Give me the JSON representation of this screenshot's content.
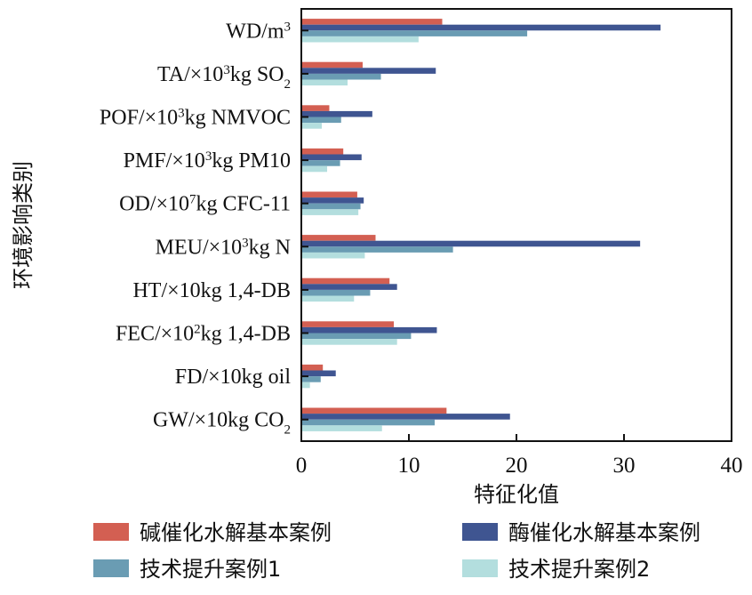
{
  "chart_data": {
    "type": "bar",
    "orientation": "horizontal",
    "xlabel": "特征化值",
    "ylabel": "环境影响类别",
    "xlim": [
      0,
      40
    ],
    "xticks": [
      0,
      10,
      20,
      30,
      40
    ],
    "categories": [
      {
        "main": "WD/m",
        "sup": "3",
        "rest": ""
      },
      {
        "main": "TA/×10",
        "sup": "3",
        "rest": "kg SO",
        "sub": "2"
      },
      {
        "main": "POF/×10",
        "sup": "3",
        "rest": "kg NMVOC"
      },
      {
        "main": "PMF/×10",
        "sup": "3",
        "rest": "kg PM10"
      },
      {
        "main": "OD/×10",
        "sup": "7",
        "rest": "kg CFC-11"
      },
      {
        "main": "MEU/×10",
        "sup": "3",
        "rest": "kg N"
      },
      {
        "main": "HT/×10kg 1,4-DB"
      },
      {
        "main": "FEC/×10",
        "sup": "2",
        "rest": "kg 1,4-DB"
      },
      {
        "main": "FD/×10kg oil"
      },
      {
        "main": "GW/×10kg CO",
        "sub": "2"
      }
    ],
    "series": [
      {
        "name": "碱催化水解基本案例",
        "color": "#d35f52",
        "values": [
          13.1,
          5.7,
          2.6,
          3.9,
          5.2,
          6.9,
          8.2,
          8.6,
          2.0,
          13.5
        ]
      },
      {
        "name": "酶催化水解基本案例",
        "color": "#3f5591",
        "values": [
          33.4,
          12.5,
          6.6,
          5.6,
          5.8,
          31.5,
          8.9,
          12.6,
          3.2,
          19.4
        ]
      },
      {
        "name": "技术提升案例1",
        "color": "#6a9cb3",
        "values": [
          21.0,
          7.4,
          3.7,
          3.6,
          5.5,
          14.1,
          6.4,
          10.2,
          1.8,
          12.4
        ]
      },
      {
        "name": "技术提升案例2",
        "color": "#b3dede",
        "values": [
          10.9,
          4.3,
          1.9,
          2.4,
          5.3,
          5.9,
          4.9,
          8.9,
          0.8,
          7.5
        ]
      }
    ],
    "legend_order": [
      0,
      1,
      2,
      3
    ]
  }
}
